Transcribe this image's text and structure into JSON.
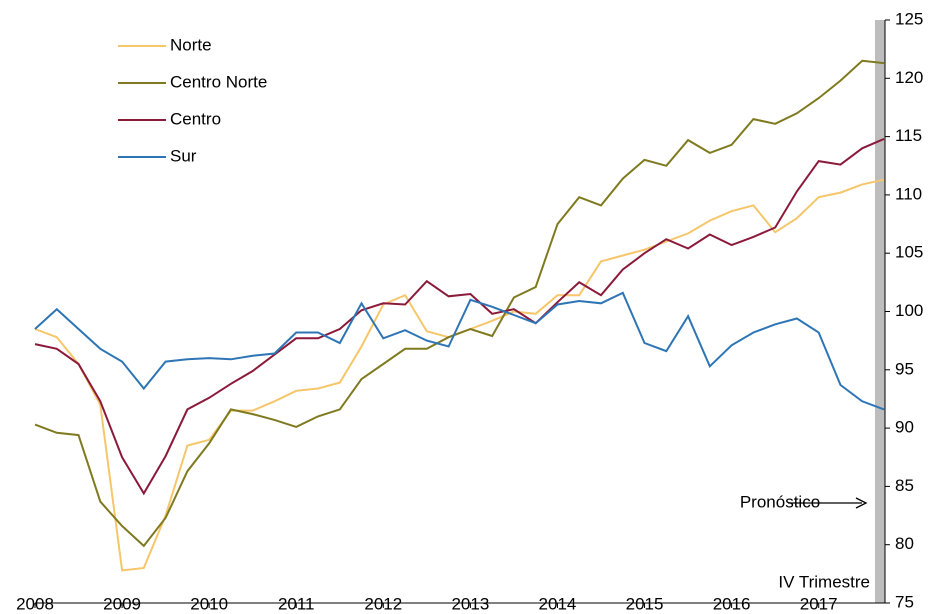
{
  "chart_data": {
    "type": "line",
    "x": [
      2008,
      2008.25,
      2008.5,
      2008.75,
      2009,
      2009.25,
      2009.5,
      2009.75,
      2010,
      2010.25,
      2010.5,
      2010.75,
      2011,
      2011.25,
      2011.5,
      2011.75,
      2012,
      2012.25,
      2012.5,
      2012.75,
      2013,
      2013.25,
      2013.5,
      2013.75,
      2014,
      2014.25,
      2014.5,
      2014.75,
      2015,
      2015.25,
      2015.5,
      2015.75,
      2016,
      2016.25,
      2016.5,
      2016.75,
      2017,
      2017.25,
      2017.5,
      2017.75
    ],
    "series": [
      {
        "name": "Norte",
        "color": "#f5c66a",
        "values": [
          98.5,
          97.8,
          95.5,
          92,
          77.8,
          78,
          82.5,
          88.5,
          89,
          91.5,
          91.5,
          92.3,
          93.2,
          93.4,
          93.9,
          97,
          100.6,
          101.4,
          98.3,
          97.8,
          98.5,
          99.2,
          100,
          99.8,
          101.4,
          101.4,
          104.3,
          104.8,
          105.3,
          106,
          106.7,
          107.8,
          108.6,
          109.1,
          106.8,
          108,
          109.8,
          110.2,
          110.9,
          111.3
        ]
      },
      {
        "name": "Centro Norte",
        "color": "#7f7a1f",
        "values": [
          90.3,
          89.6,
          89.4,
          83.7,
          81.6,
          79.9,
          82.3,
          86.3,
          88.7,
          91.6,
          91.2,
          90.7,
          90.1,
          91,
          91.6,
          94.2,
          95.5,
          96.8,
          96.8,
          97.8,
          98.5,
          97.9,
          101.2,
          102.1,
          107.5,
          109.8,
          109.1,
          111.4,
          113,
          112.5,
          114.7,
          113.6,
          114.3,
          116.5,
          116.1,
          117,
          118.3,
          119.8,
          121.5,
          121.3
        ]
      },
      {
        "name": "Centro",
        "color": "#8b1a3a",
        "values": [
          97.2,
          96.8,
          95.5,
          92.3,
          87.5,
          84.4,
          87.6,
          91.6,
          92.6,
          93.8,
          94.9,
          96.3,
          97.7,
          97.7,
          98.5,
          100.1,
          100.7,
          100.6,
          102.6,
          101.3,
          101.5,
          99.8,
          100.2,
          99,
          100.8,
          102.5,
          101.4,
          103.6,
          105,
          106.2,
          105.4,
          106.6,
          105.7,
          106.4,
          107.2,
          110.3,
          112.9,
          112.6,
          114,
          114.8
        ]
      },
      {
        "name": "Sur",
        "color": "#2e75b6",
        "values": [
          98.5,
          100.2,
          98.5,
          96.8,
          95.7,
          93.4,
          95.7,
          95.9,
          96,
          95.9,
          96.2,
          96.4,
          98.2,
          98.2,
          97.3,
          100.7,
          97.7,
          98.4,
          97.5,
          97,
          101,
          100.4,
          99.7,
          99,
          100.6,
          100.9,
          100.7,
          101.6,
          97.3,
          96.6,
          99.6,
          95.3,
          97.1,
          98.2,
          98.9,
          99.4,
          98.2,
          93.7,
          92.3,
          91.6
        ]
      }
    ],
    "xlim": [
      2008,
      2017.75
    ],
    "xticks": [
      2008,
      2009,
      2010,
      2011,
      2012,
      2013,
      2014,
      2015,
      2016,
      2017
    ],
    "ylim": [
      75,
      125
    ],
    "yticks": [
      75,
      80,
      85,
      90,
      95,
      100,
      105,
      110,
      115,
      120,
      125
    ],
    "forecast_label": "Pronóstico",
    "period_label": "IV Trimestre"
  }
}
